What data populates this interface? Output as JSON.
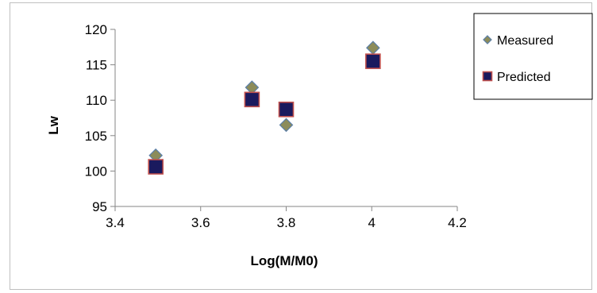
{
  "chart_data": {
    "type": "scatter",
    "xlabel": "Log(M/M0)",
    "ylabel": "Lw",
    "xlim": [
      3.4,
      4.2
    ],
    "ylim": [
      95,
      120
    ],
    "xticks": [
      3.4,
      3.6,
      3.8,
      4,
      4.2
    ],
    "yticks": [
      95,
      100,
      105,
      110,
      115,
      120
    ],
    "xtick_labels": [
      "3.4",
      "3.6",
      "3.8",
      "4",
      "4.2"
    ],
    "ytick_labels": [
      "95",
      "100",
      "105",
      "110",
      "115",
      "120"
    ],
    "grid": false,
    "legend_position": "top-right",
    "series": [
      {
        "name": "Measured",
        "marker": "diamond",
        "color": "#8c8c5a",
        "edge_color": "#5b7fa8",
        "x": [
          3.495,
          3.72,
          3.8,
          4.003
        ],
        "y": [
          102.2,
          111.8,
          106.5,
          117.4
        ]
      },
      {
        "name": "Predicted",
        "marker": "square",
        "color": "#1a1a5e",
        "edge_color": "#c0504d",
        "x": [
          3.495,
          3.72,
          3.8,
          4.003
        ],
        "y": [
          100.6,
          110.1,
          108.7,
          115.5
        ]
      }
    ]
  }
}
